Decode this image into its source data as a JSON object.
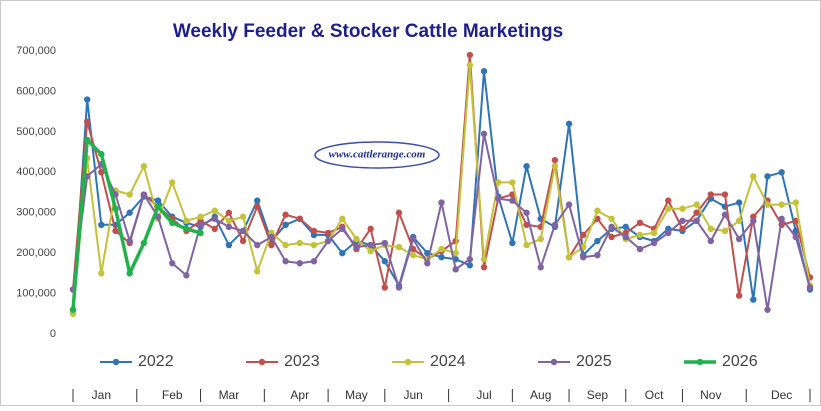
{
  "chart_data": {
    "type": "line",
    "title": "Weekly Feeder & Stocker Cattle Marketings",
    "watermark": "www.cattlerange.com",
    "categories": [
      null,
      null,
      "Jan",
      null,
      null,
      null,
      null,
      "Feb",
      null,
      null,
      null,
      "Mar",
      null,
      null,
      null,
      null,
      "Apr",
      null,
      null,
      null,
      "May",
      null,
      null,
      null,
      "Jun",
      null,
      null,
      null,
      null,
      "Jul",
      null,
      null,
      null,
      "Aug",
      null,
      null,
      null,
      "Sep",
      null,
      null,
      null,
      "Oct",
      null,
      null,
      null,
      "Nov",
      null,
      null,
      null,
      null,
      "Dec",
      null,
      null
    ],
    "ylim": [
      0,
      700000
    ],
    "yticks": [
      0,
      {
        "value": 100000,
        "label": "100,000"
      },
      {
        "value": 200000,
        "label": "200,000"
      },
      {
        "value": 300000,
        "label": "300,000"
      },
      {
        "value": 400000,
        "label": "400,000"
      },
      {
        "value": 500000,
        "label": "500,000"
      },
      {
        "value": 600000,
        "label": "600,000"
      },
      {
        "value": 700000,
        "label": "700,000"
      }
    ],
    "grid": false,
    "legend": "bottom",
    "series": [
      {
        "name": "2022",
        "color": "#2e75b6",
        "width": 2,
        "values": [
          60000,
          580000,
          270000,
          270000,
          300000,
          340000,
          330000,
          290000,
          275000,
          265000,
          290000,
          220000,
          255000,
          330000,
          230000,
          270000,
          285000,
          245000,
          245000,
          200000,
          230000,
          220000,
          180000,
          120000,
          240000,
          200000,
          190000,
          185000,
          170000,
          650000,
          340000,
          225000,
          415000,
          285000,
          265000,
          520000,
          195000,
          230000,
          260000,
          265000,
          240000,
          230000,
          260000,
          255000,
          280000,
          335000,
          315000,
          325000,
          85000,
          390000,
          400000,
          255000,
          110000
        ]
      },
      {
        "name": "2023",
        "color": "#c0504d",
        "width": 2,
        "values": [
          110000,
          525000,
          400000,
          255000,
          225000,
          345000,
          315000,
          285000,
          255000,
          280000,
          260000,
          300000,
          230000,
          315000,
          220000,
          295000,
          285000,
          255000,
          250000,
          265000,
          210000,
          260000,
          115000,
          300000,
          210000,
          185000,
          205000,
          230000,
          690000,
          165000,
          335000,
          345000,
          270000,
          265000,
          430000,
          190000,
          245000,
          285000,
          240000,
          250000,
          275000,
          260000,
          330000,
          260000,
          300000,
          345000,
          345000,
          95000,
          290000,
          330000,
          270000,
          280000,
          140000
        ]
      },
      {
        "name": "2024",
        "color": "#c3c23a",
        "width": 2,
        "values": [
          50000,
          435000,
          150000,
          355000,
          345000,
          415000,
          285000,
          375000,
          280000,
          290000,
          305000,
          280000,
          290000,
          155000,
          250000,
          220000,
          225000,
          220000,
          230000,
          285000,
          235000,
          205000,
          220000,
          215000,
          195000,
          185000,
          210000,
          200000,
          665000,
          185000,
          375000,
          375000,
          220000,
          235000,
          415000,
          190000,
          215000,
          305000,
          285000,
          235000,
          245000,
          250000,
          310000,
          310000,
          320000,
          260000,
          255000,
          280000,
          390000,
          320000,
          320000,
          325000,
          120000
        ]
      },
      {
        "name": "2025",
        "color": "#8064a2",
        "width": 2,
        "values": [
          110000,
          390000,
          420000,
          345000,
          230000,
          345000,
          290000,
          175000,
          145000,
          270000,
          285000,
          265000,
          255000,
          220000,
          240000,
          180000,
          175000,
          180000,
          230000,
          260000,
          215000,
          220000,
          225000,
          115000,
          235000,
          175000,
          325000,
          160000,
          185000,
          495000,
          335000,
          330000,
          300000,
          165000,
          270000,
          320000,
          190000,
          195000,
          265000,
          240000,
          210000,
          225000,
          250000,
          280000,
          280000,
          230000,
          295000,
          235000,
          280000,
          60000,
          285000,
          240000,
          115000
        ]
      },
      {
        "name": "2026",
        "color": "#22b14c",
        "width": 3.5,
        "values": [
          60000,
          480000,
          445000,
          310000,
          150000,
          225000,
          315000,
          275000,
          260000,
          250000,
          null,
          null,
          null,
          null,
          null,
          null,
          null,
          null,
          null,
          null,
          null,
          null,
          null,
          null,
          null,
          null,
          null,
          null,
          null,
          null,
          null,
          null,
          null,
          null,
          null,
          null,
          null,
          null,
          null,
          null,
          null,
          null,
          null,
          null,
          null,
          null,
          null,
          null,
          null,
          null,
          null,
          null,
          null
        ]
      }
    ]
  }
}
